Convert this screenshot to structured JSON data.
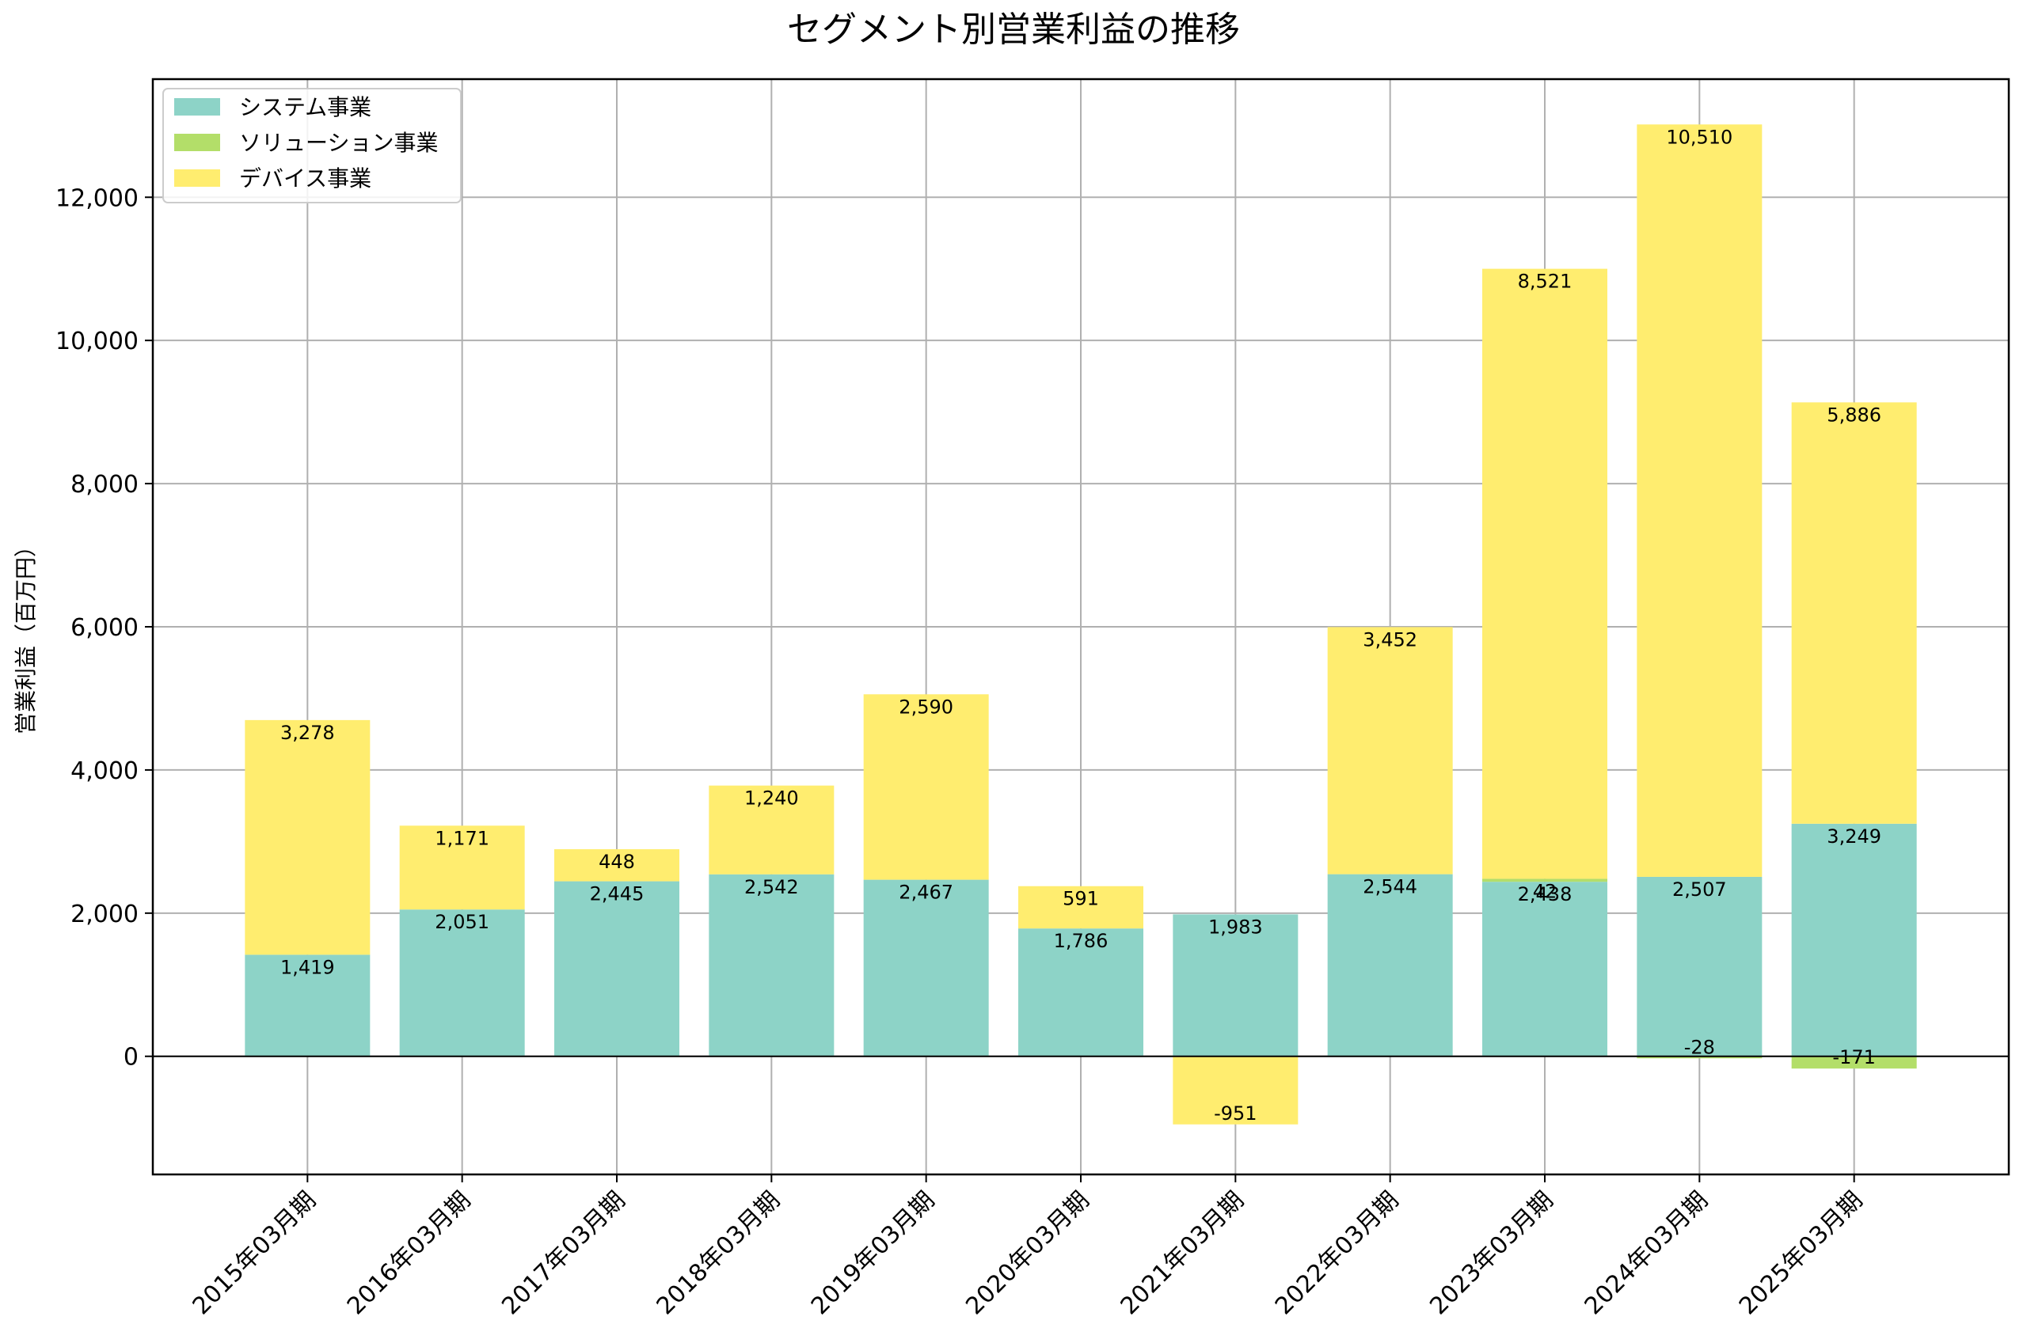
{
  "chart_data": {
    "type": "bar",
    "stacked": true,
    "title": "セグメント別営業利益の推移",
    "xlabel": "",
    "ylabel": "営業利益（百万円）",
    "ylim": [
      -1650,
      13650
    ],
    "yticks": [
      0,
      2000,
      4000,
      6000,
      8000,
      10000,
      12000
    ],
    "ytick_labels": [
      "0",
      "2,000",
      "4,000",
      "6,000",
      "8,000",
      "10,000",
      "12,000"
    ],
    "grid": true,
    "legend_position": "top-left",
    "categories": [
      "2015年03月期",
      "2016年03月期",
      "2017年03月期",
      "2018年03月期",
      "2019年03月期",
      "2020年03月期",
      "2021年03月期",
      "2022年03月期",
      "2023年03月期",
      "2024年03月期",
      "2025年03月期"
    ],
    "series": [
      {
        "name": "システム事業",
        "color": "#8dd3c7",
        "values": [
          1419,
          2051,
          2445,
          2542,
          2467,
          1786,
          1983,
          2544,
          2438,
          2507,
          3249
        ]
      },
      {
        "name": "ソリューション事業",
        "color": "#b3de69",
        "values": [
          null,
          null,
          null,
          null,
          null,
          null,
          null,
          null,
          42,
          -28,
          -171
        ]
      },
      {
        "name": "デバイス事業",
        "color": "#ffed6f",
        "values": [
          3278,
          1171,
          448,
          1240,
          2590,
          591,
          -951,
          3452,
          8521,
          10510,
          5886
        ]
      }
    ]
  }
}
